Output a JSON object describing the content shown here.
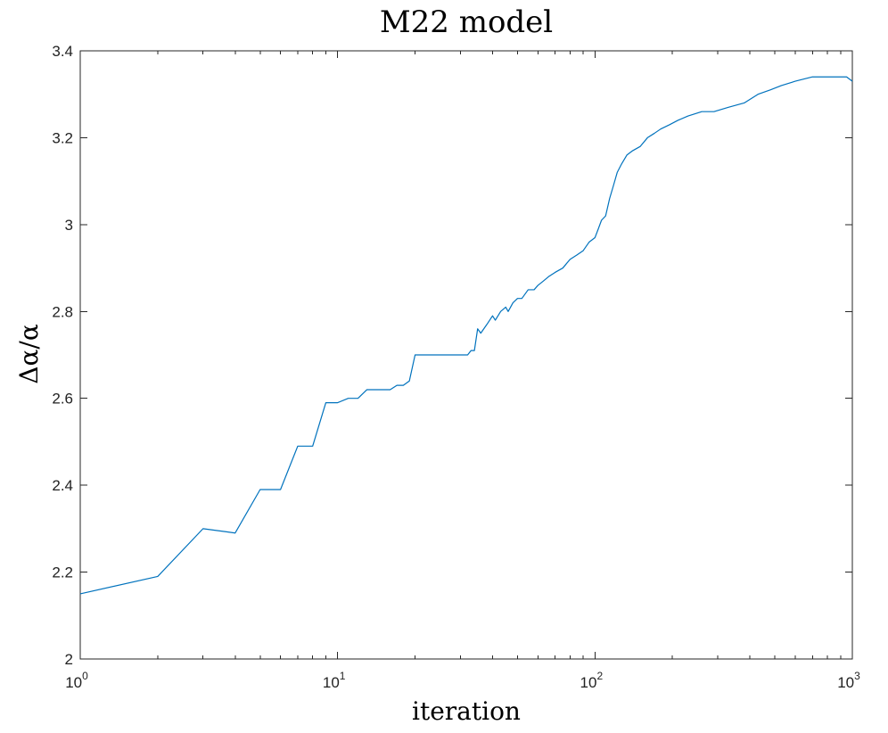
{
  "chart_data": {
    "type": "line",
    "title": "M22 model",
    "xlabel": "iteration",
    "ylabel": "Δα/α",
    "xscale": "log",
    "xlim": [
      1,
      1000
    ],
    "ylim": [
      2,
      3.4
    ],
    "grid": false,
    "box": true,
    "x_ticks": [
      {
        "base": "10",
        "exp": "0",
        "value": 1
      },
      {
        "base": "10",
        "exp": "1",
        "value": 10
      },
      {
        "base": "10",
        "exp": "2",
        "value": 100
      },
      {
        "base": "10",
        "exp": "3",
        "value": 1000
      }
    ],
    "y_ticks": [
      {
        "label": "2",
        "value": 2
      },
      {
        "label": "2.2",
        "value": 2.2
      },
      {
        "label": "2.4",
        "value": 2.4
      },
      {
        "label": "2.6",
        "value": 2.6
      },
      {
        "label": "2.8",
        "value": 2.8
      },
      {
        "label": "3",
        "value": 3
      },
      {
        "label": "3.2",
        "value": 3.2
      },
      {
        "label": "3.4",
        "value": 3.4
      }
    ],
    "series": [
      {
        "color": "#0072BD",
        "x": [
          1,
          2,
          3,
          4,
          5,
          6,
          7,
          8,
          9,
          10,
          11,
          12,
          13,
          16,
          17,
          18,
          19,
          20,
          32,
          33,
          34,
          35,
          36,
          38,
          40,
          41,
          43,
          45,
          46,
          48,
          50,
          52,
          55,
          58,
          60,
          63,
          66,
          70,
          75,
          80,
          85,
          90,
          95,
          100,
          103,
          106,
          110,
          114,
          118,
          122,
          127,
          133,
          140,
          150,
          160,
          170,
          180,
          195,
          210,
          230,
          260,
          290,
          330,
          380,
          430,
          480,
          530,
          600,
          700,
          850,
          950,
          1000
        ],
        "y": [
          2.15,
          2.19,
          2.3,
          2.29,
          2.39,
          2.39,
          2.49,
          2.49,
          2.59,
          2.59,
          2.6,
          2.6,
          2.62,
          2.62,
          2.63,
          2.63,
          2.64,
          2.7,
          2.7,
          2.71,
          2.71,
          2.76,
          2.75,
          2.77,
          2.79,
          2.78,
          2.8,
          2.81,
          2.8,
          2.82,
          2.83,
          2.83,
          2.85,
          2.85,
          2.86,
          2.87,
          2.88,
          2.89,
          2.9,
          2.92,
          2.93,
          2.94,
          2.96,
          2.97,
          2.99,
          3.01,
          3.02,
          3.06,
          3.09,
          3.12,
          3.14,
          3.16,
          3.17,
          3.18,
          3.2,
          3.21,
          3.22,
          3.23,
          3.24,
          3.25,
          3.26,
          3.26,
          3.27,
          3.28,
          3.3,
          3.31,
          3.32,
          3.33,
          3.34,
          3.34,
          3.34,
          3.33
        ]
      }
    ]
  }
}
